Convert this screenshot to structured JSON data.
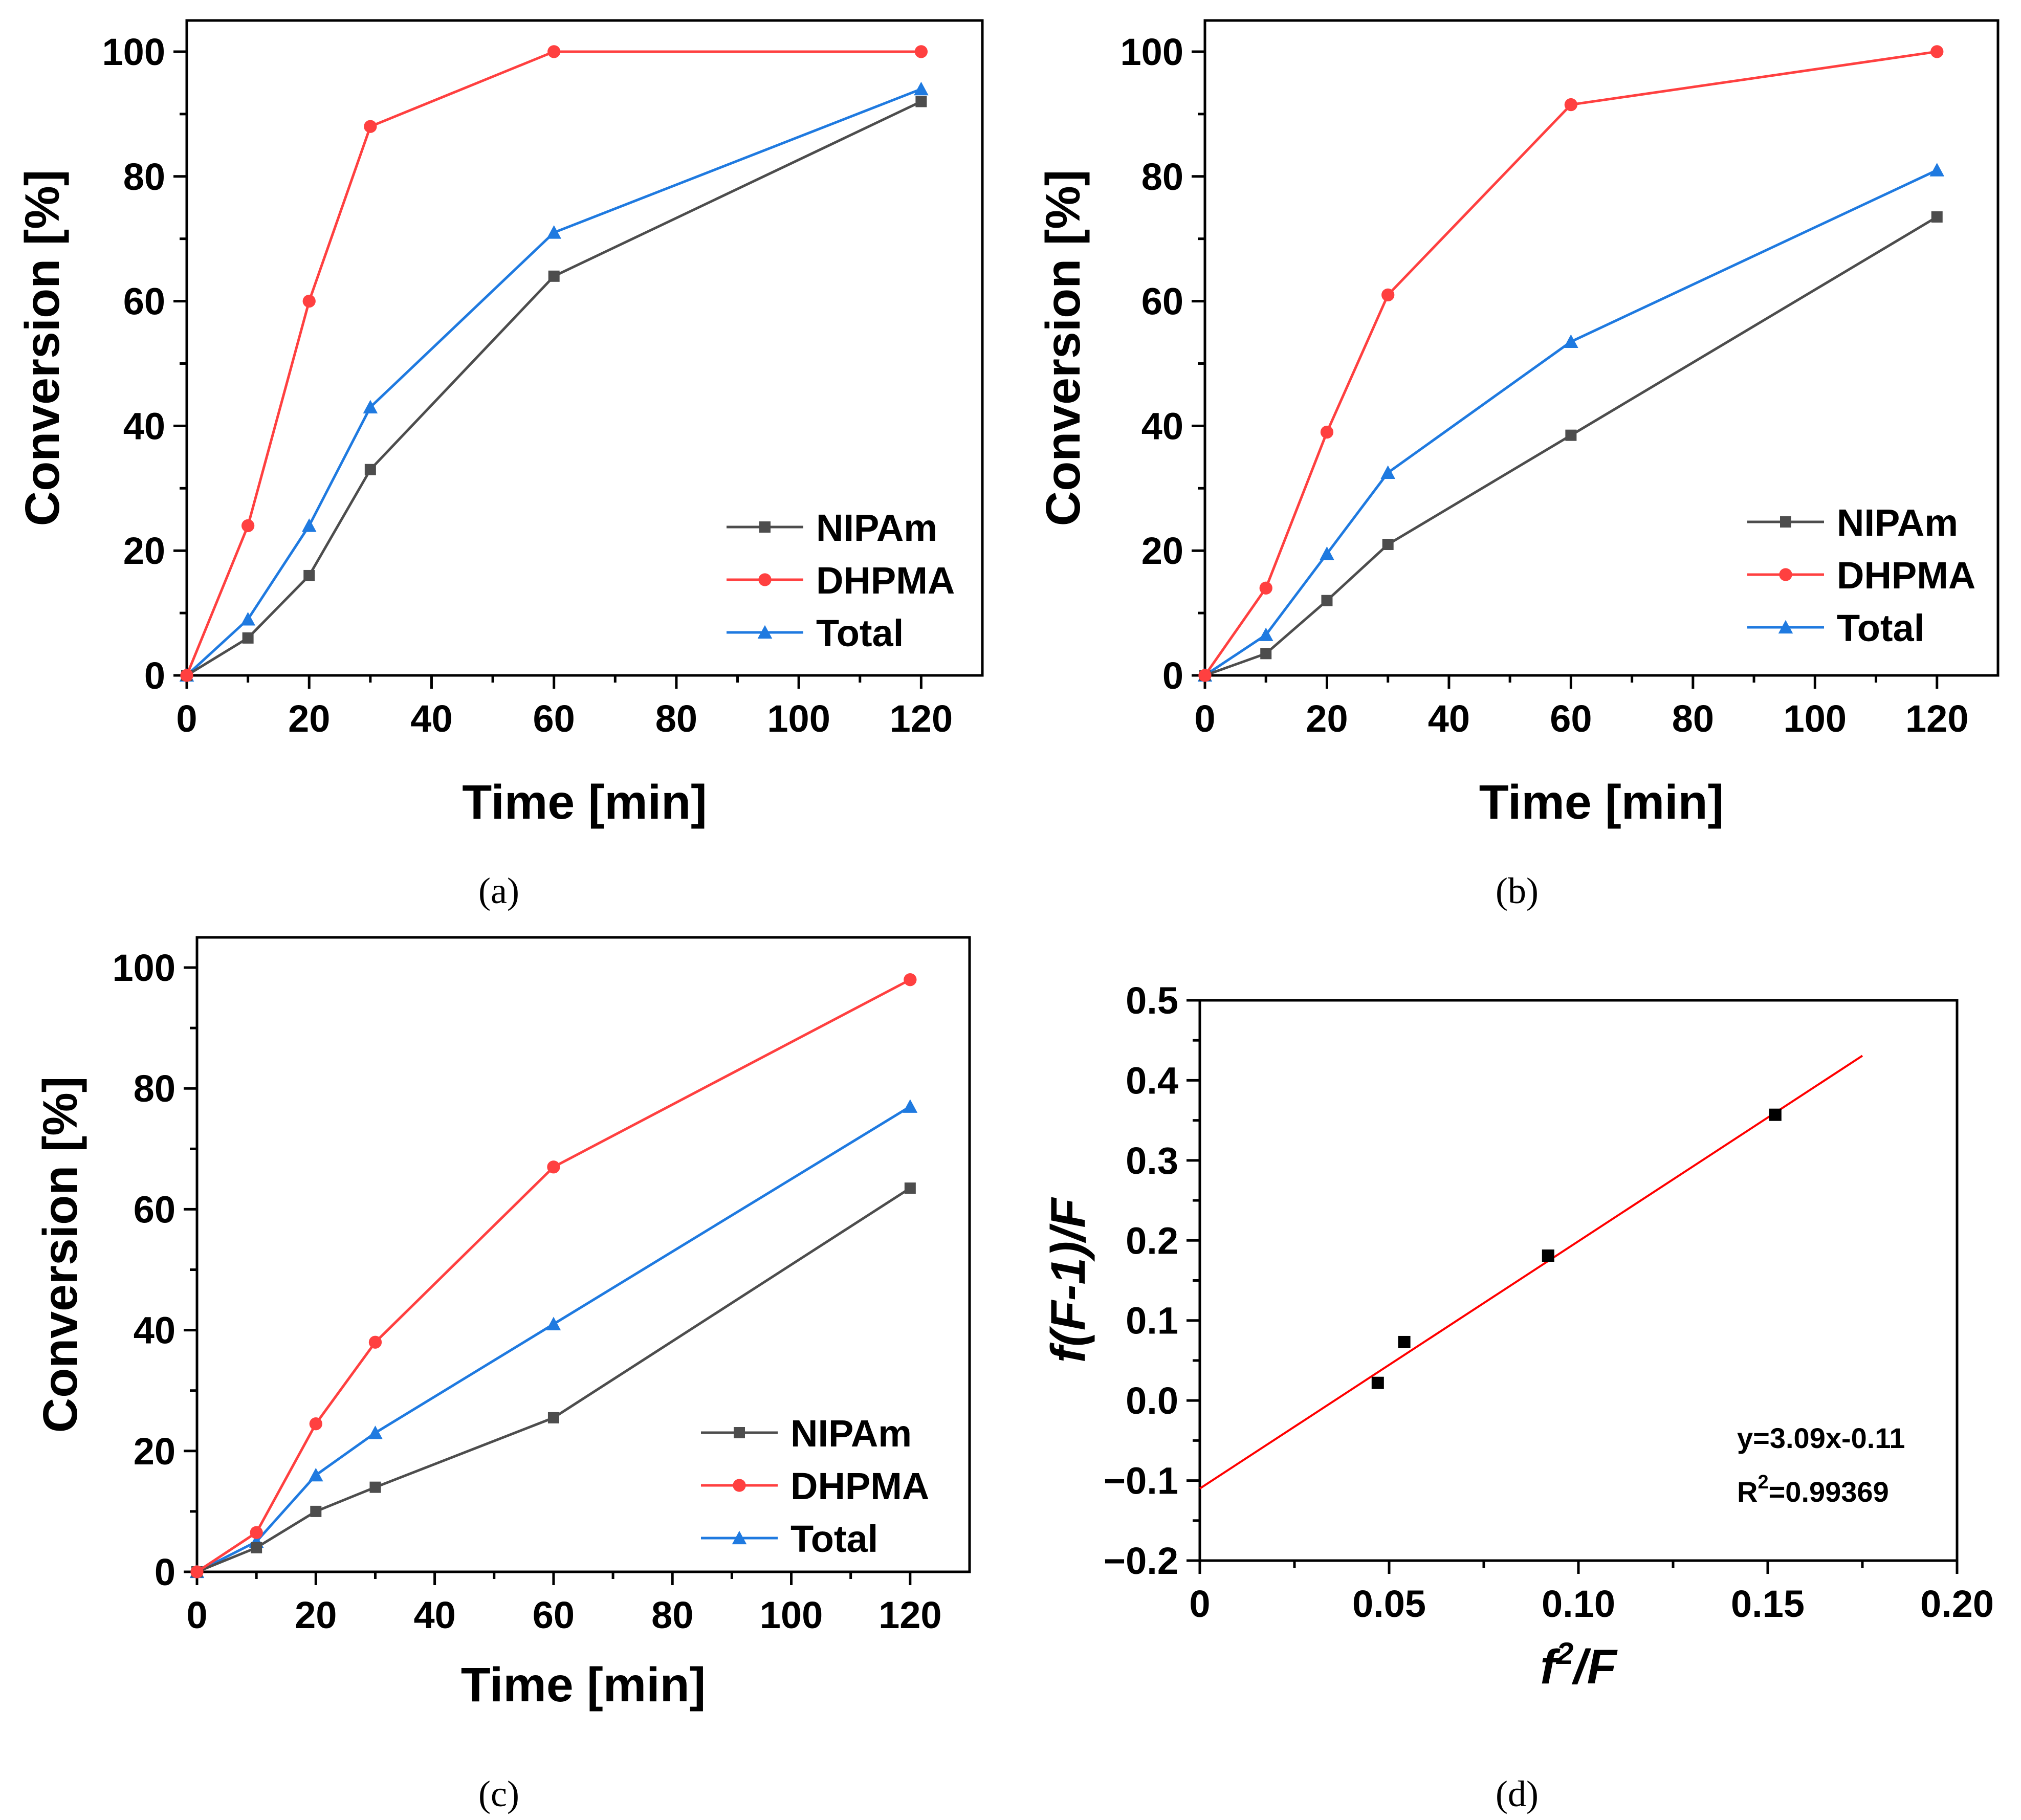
{
  "chart_data": [
    {
      "type": "line",
      "panel_label": "(a)",
      "xlabel": "Time [min]",
      "ylabel": "Conversion [%]",
      "xlim": [
        0,
        130
      ],
      "ylim": [
        0,
        105
      ],
      "xticks": [
        0,
        20,
        40,
        60,
        80,
        100,
        120
      ],
      "yticks": [
        0,
        20,
        40,
        60,
        80,
        100
      ],
      "legend_position": "bottom-right",
      "series": [
        {
          "name": "NIPAm",
          "color": "#4d4d4d",
          "marker": "square",
          "x": [
            0,
            10,
            20,
            30,
            60,
            120
          ],
          "y": [
            0,
            6,
            16,
            33,
            64,
            92
          ]
        },
        {
          "name": "DHPMA",
          "color": "#ff4040",
          "marker": "circle",
          "x": [
            0,
            10,
            20,
            30,
            60,
            120
          ],
          "y": [
            0,
            24,
            60,
            88,
            100,
            100
          ]
        },
        {
          "name": "Total",
          "color": "#1f7ae0",
          "marker": "triangle",
          "x": [
            0,
            10,
            20,
            30,
            60,
            120
          ],
          "y": [
            0,
            9,
            24,
            43,
            71,
            94
          ]
        }
      ]
    },
    {
      "type": "line",
      "panel_label": "(b)",
      "xlabel": "Time [min]",
      "ylabel": "Conversion [%]",
      "xlim": [
        0,
        130
      ],
      "ylim": [
        0,
        105
      ],
      "xticks": [
        0,
        20,
        40,
        60,
        80,
        100,
        120
      ],
      "yticks": [
        0,
        20,
        40,
        60,
        80,
        100
      ],
      "legend_position": "bottom-right",
      "series": [
        {
          "name": "NIPAm",
          "color": "#4d4d4d",
          "marker": "square",
          "x": [
            0,
            10,
            20,
            30,
            60,
            120
          ],
          "y": [
            0,
            3.5,
            12,
            21,
            38.5,
            73.5
          ]
        },
        {
          "name": "DHPMA",
          "color": "#ff4040",
          "marker": "circle",
          "x": [
            0,
            10,
            20,
            30,
            60,
            120
          ],
          "y": [
            0,
            14,
            39,
            61,
            91.5,
            100
          ]
        },
        {
          "name": "Total",
          "color": "#1f7ae0",
          "marker": "triangle",
          "x": [
            0,
            10,
            20,
            30,
            60,
            120
          ],
          "y": [
            0,
            6.5,
            19.5,
            32.5,
            53.5,
            81
          ]
        }
      ]
    },
    {
      "type": "line",
      "panel_label": "(c)",
      "xlabel": "Time [min]",
      "ylabel": "Conversion [%]",
      "xlim": [
        0,
        130
      ],
      "ylim": [
        0,
        105
      ],
      "xticks": [
        0,
        20,
        40,
        60,
        80,
        100,
        120
      ],
      "yticks": [
        0,
        20,
        40,
        60,
        80,
        100
      ],
      "legend_position": "bottom-right",
      "series": [
        {
          "name": "NIPAm",
          "color": "#4d4d4d",
          "marker": "square",
          "x": [
            0,
            10,
            20,
            30,
            60,
            120
          ],
          "y": [
            0,
            4,
            10,
            14,
            25.5,
            63.5
          ]
        },
        {
          "name": "DHPMA",
          "color": "#ff4040",
          "marker": "circle",
          "x": [
            0,
            10,
            20,
            30,
            60,
            120
          ],
          "y": [
            0,
            6.5,
            24.5,
            38,
            67,
            98
          ]
        },
        {
          "name": "Total",
          "color": "#1f7ae0",
          "marker": "triangle",
          "x": [
            0,
            10,
            20,
            30,
            60,
            120
          ],
          "y": [
            0,
            5,
            16,
            23,
            41,
            77
          ]
        }
      ]
    },
    {
      "type": "scatter",
      "panel_label": "(d)",
      "xlabel_main": "f",
      "xlabel_sup": "2",
      "xlabel_rest": "/F",
      "ylabel": "f(F-1)/F",
      "xlim": [
        0,
        0.2
      ],
      "ylim": [
        -0.2,
        0.5
      ],
      "xticks": [
        0,
        0.05,
        0.1,
        0.15,
        0.2
      ],
      "xtick_labels": [
        "0",
        "0.05",
        "0.10",
        "0.15",
        "0.20"
      ],
      "yticks": [
        -0.2,
        -0.1,
        0.0,
        0.1,
        0.2,
        0.3,
        0.4,
        0.5
      ],
      "ytick_labels": [
        "−0.2",
        "−0.1",
        "0.0",
        "0.1",
        "0.2",
        "0.3",
        "0.4",
        "0.5"
      ],
      "points": {
        "color": "#000000",
        "marker": "square",
        "x": [
          0.047,
          0.054,
          0.092,
          0.152
        ],
        "y": [
          0.022,
          0.073,
          0.181,
          0.357
        ]
      },
      "fit": {
        "color": "#ff0000",
        "slope": 3.09,
        "intercept": -0.11,
        "x_range": [
          0,
          0.175
        ]
      },
      "equation": "y=3.09x-0.11",
      "r2_label": "R",
      "r2_sup": "2",
      "r2_value": "=0.99369"
    }
  ]
}
